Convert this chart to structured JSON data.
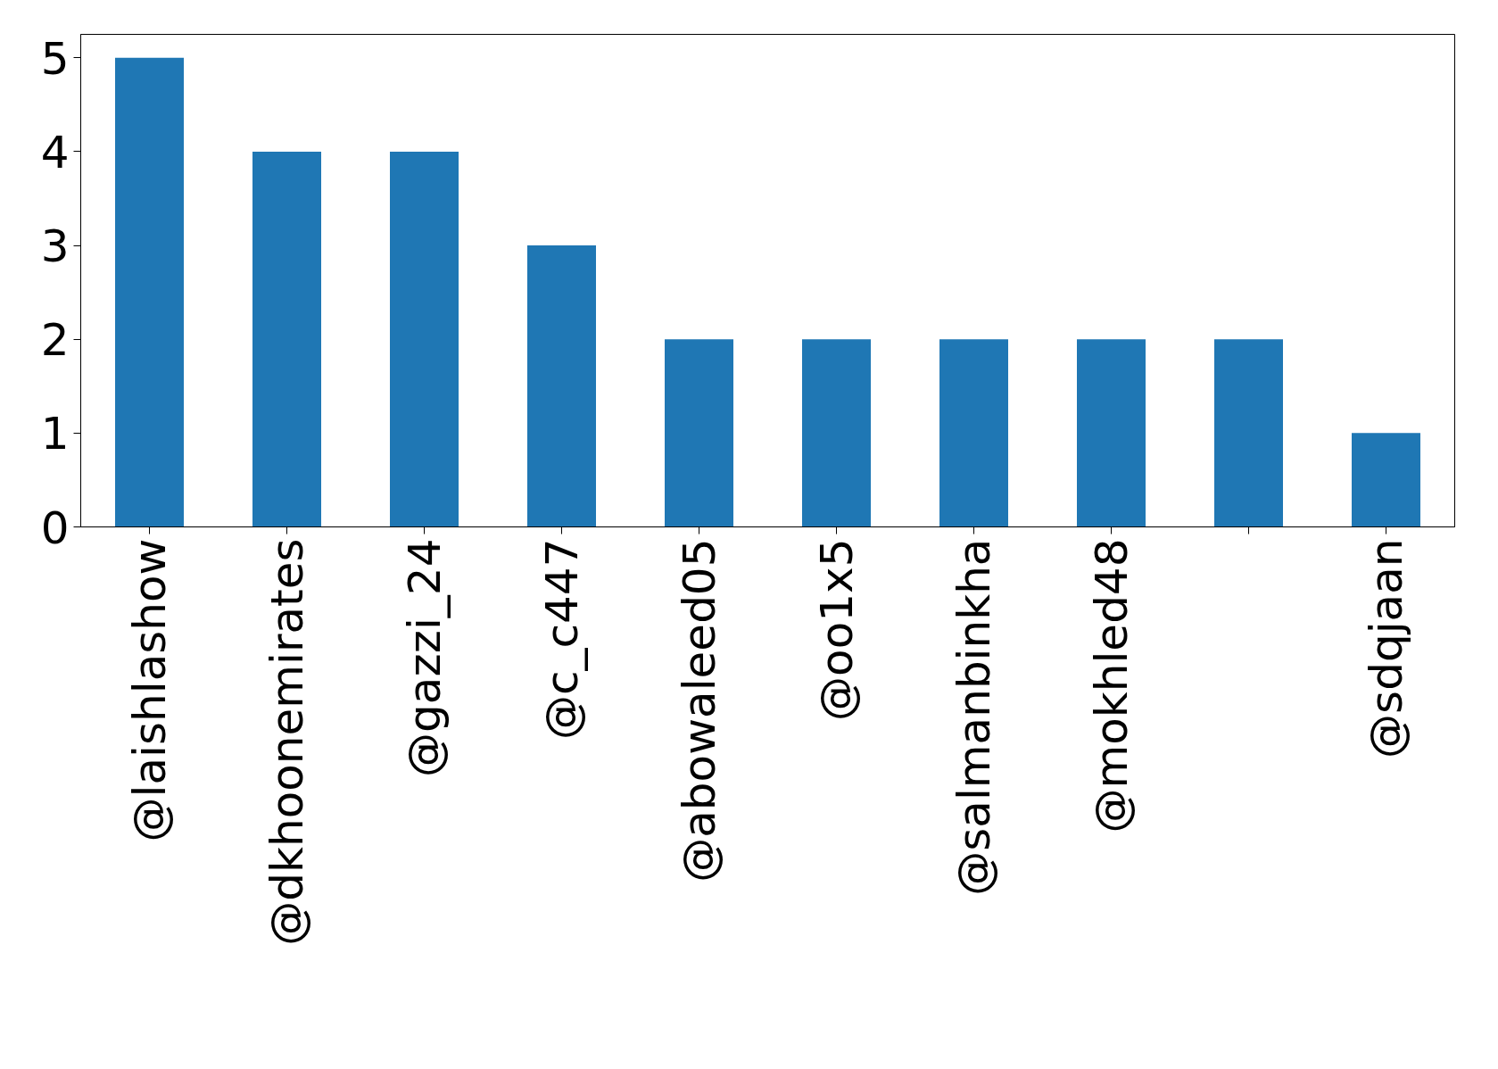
{
  "chart_data": {
    "type": "bar",
    "categories": [
      "@laishlashow",
      "@dkhoonemirates",
      "@gazzi_24",
      "@c_c447",
      "@abowaleed05",
      "@oo1x5",
      "@salmanbinkha",
      "@mokhled48",
      null,
      "@sdqjaan"
    ],
    "values": [
      5,
      4,
      4,
      3,
      2,
      2,
      2,
      2,
      2,
      1
    ],
    "color": "#1f77b4",
    "ylim": [
      0,
      5.25
    ],
    "yticks": [
      0,
      1,
      2,
      3,
      4,
      5
    ],
    "grid": false
  }
}
